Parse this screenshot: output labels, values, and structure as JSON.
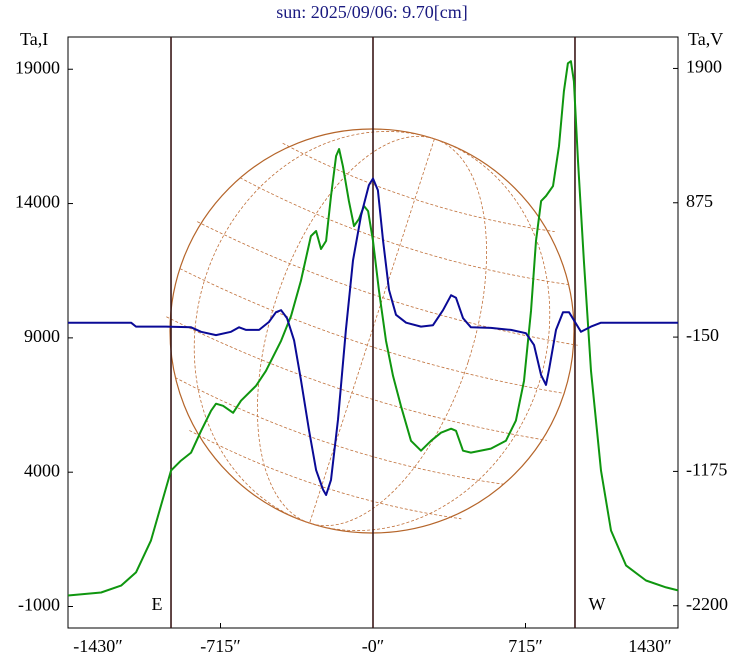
{
  "chart_data": {
    "type": "line",
    "title": "sun: 2025/09/06: 9.70[cm]",
    "ylabel": "Ta,I",
    "y2label": "Ta,V",
    "xlim": [
      -1430,
      1430
    ],
    "xticks": [
      {
        "value": -1430,
        "label": "-1430″"
      },
      {
        "value": -715,
        "label": "-715″"
      },
      {
        "value": 0,
        "label": "-0″"
      },
      {
        "value": 715,
        "label": "715″"
      },
      {
        "value": 1430,
        "label": "1430″"
      }
    ],
    "ylim": [
      -1800,
      20200
    ],
    "yticks": [
      -1000,
      4000,
      9000,
      14000,
      19000
    ],
    "y2lim": [
      -2370,
      2140
    ],
    "y2ticks": [
      -2200,
      -1175,
      -150,
      875,
      1900
    ],
    "vlines": [
      -947,
      0,
      947
    ],
    "annotations": [
      {
        "x": -947,
        "text": "E"
      },
      {
        "x": 947,
        "text": "W"
      }
    ],
    "series": [
      {
        "color": "#0f960f",
        "axis": "y",
        "x": [
          -1430,
          -1275,
          -1181,
          -1111,
          -1041,
          -994,
          -947,
          -900,
          -853,
          -806,
          -759,
          -736,
          -703,
          -656,
          -619,
          -548,
          -502,
          -431,
          -384,
          -338,
          -291,
          -267,
          -244,
          -220,
          -197,
          -173,
          -159,
          -141,
          -113,
          -89,
          -66,
          -42,
          -23,
          0,
          28,
          61,
          94,
          131,
          178,
          225,
          272,
          319,
          366,
          389,
          422,
          459,
          553,
          623,
          670,
          708,
          741,
          764,
          788,
          811,
          844,
          872,
          895,
          914,
          928,
          942,
          961,
          989,
          1022,
          1069,
          1116,
          1186,
          1280,
          1374,
          1430
        ],
        "values": [
          -590,
          -480,
          -220,
          270,
          1460,
          2760,
          4060,
          4430,
          4730,
          5540,
          6290,
          6550,
          6470,
          6210,
          6660,
          7220,
          7770,
          8890,
          9820,
          11120,
          12790,
          12980,
          12310,
          12610,
          14280,
          15770,
          16030,
          15390,
          14090,
          13160,
          13420,
          13910,
          13720,
          12610,
          10750,
          8890,
          7590,
          6470,
          5170,
          4800,
          5170,
          5470,
          5620,
          5540,
          4800,
          4730,
          4880,
          5170,
          5920,
          7400,
          10000,
          12610,
          14090,
          14280,
          14650,
          16140,
          18180,
          19220,
          19300,
          18550,
          15580,
          11860,
          7770,
          4060,
          1830,
          530,
          -30,
          -290,
          -400
        ]
      },
      {
        "color": "#0a0a96",
        "axis": "y2",
        "x": [
          -1430,
          -1134,
          -1111,
          -970,
          -853,
          -806,
          -736,
          -666,
          -628,
          -595,
          -534,
          -488,
          -455,
          -431,
          -403,
          -370,
          -338,
          -300,
          -267,
          -234,
          -220,
          -197,
          -164,
          -127,
          -94,
          -56,
          -19,
          0,
          23,
          47,
          75,
          108,
          155,
          225,
          281,
          328,
          366,
          389,
          422,
          459,
          553,
          647,
          717,
          755,
          788,
          811,
          825,
          858,
          891,
          919,
          947,
          975,
          1022,
          1069,
          1256,
          1430
        ],
        "values": [
          -40,
          -40,
          -70,
          -70,
          -75,
          -110,
          -135,
          -110,
          -75,
          -95,
          -95,
          -35,
          40,
          55,
          -5,
          -175,
          -475,
          -860,
          -1165,
          -1315,
          -1355,
          -1240,
          -780,
          -95,
          435,
          780,
          1010,
          1060,
          970,
          590,
          210,
          20,
          -40,
          -70,
          -60,
          55,
          170,
          150,
          -5,
          -75,
          -80,
          -95,
          -120,
          -210,
          -440,
          -515,
          -400,
          -95,
          40,
          40,
          -35,
          -110,
          -70,
          -40,
          -40,
          -40
        ]
      }
    ]
  }
}
